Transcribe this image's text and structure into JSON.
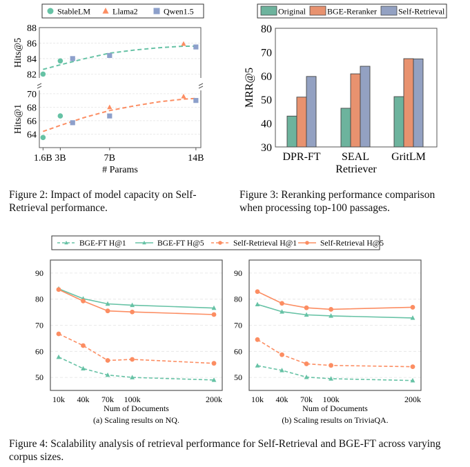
{
  "captions": {
    "fig2": "Figure 2: Impact of model capacity on Self-Retrieval performance.",
    "fig3": "Figure 3: Reranking performance comparison when processing top-100 passages.",
    "fig4": "Figure 4: Scalability analysis of retrieval performance for Self-Retrieval and BGE-FT across varying corpus sizes."
  },
  "colors": {
    "green": "#66c2a5",
    "orange": "#fc8d62",
    "blue": "#8da0cb",
    "bar_green": "#6db39d",
    "bar_orange": "#e8926f",
    "bar_blue": "#93a1c2"
  },
  "chart_data": [
    {
      "id": "fig2",
      "type": "scatter",
      "title": "",
      "xlabel": "# Params",
      "x_ticks": [
        1.6,
        3,
        7,
        14
      ],
      "x_tick_labels": [
        "1.6B",
        "3B",
        "7B",
        "14B"
      ],
      "xlim": [
        1.3,
        14.4
      ],
      "legend": [
        "StableLM",
        "Llama2",
        "Qwen1.5"
      ],
      "legend_position": "top",
      "panels": [
        {
          "ylabel": "Hits@5",
          "ylim": [
            81.5,
            88
          ],
          "yticks": [
            82,
            84,
            86,
            88
          ],
          "series": [
            {
              "name": "StableLM",
              "marker": "circle",
              "points": [
                [
                  1.6,
                  82.0
                ],
                [
                  3,
                  83.7
                ]
              ]
            },
            {
              "name": "Llama2",
              "marker": "triangle",
              "points": [
                [
                  13,
                  85.9
                ]
              ]
            },
            {
              "name": "Qwen1.5",
              "marker": "square",
              "points": [
                [
                  4,
                  84.0
                ],
                [
                  7,
                  84.4
                ],
                [
                  14,
                  85.5
                ]
              ]
            }
          ],
          "trend": {
            "color": "green",
            "points": [
              [
                1.6,
                82.6
              ],
              [
                3,
                83.2
              ],
              [
                4,
                83.6
              ],
              [
                5,
                84.0
              ],
              [
                7,
                84.7
              ],
              [
                9,
                85.1
              ],
              [
                11,
                85.4
              ],
              [
                13,
                85.6
              ],
              [
                14,
                85.6
              ]
            ]
          }
        },
        {
          "ylabel": "Hits@1",
          "ylim": [
            62,
            70.5
          ],
          "yticks": [
            64,
            66,
            68,
            70
          ],
          "series": [
            {
              "name": "StableLM",
              "marker": "circle",
              "points": [
                [
                  1.6,
                  63.5
                ],
                [
                  3,
                  66.7
                ]
              ]
            },
            {
              "name": "Llama2",
              "marker": "triangle",
              "points": [
                [
                  7,
                  68.0
                ],
                [
                  13,
                  69.6
                ]
              ]
            },
            {
              "name": "Qwen1.5",
              "marker": "square",
              "points": [
                [
                  4,
                  65.7
                ],
                [
                  7,
                  66.7
                ],
                [
                  14,
                  69.0
                ]
              ]
            }
          ],
          "trend": {
            "color": "orange",
            "points": [
              [
                1.6,
                64.4
              ],
              [
                3,
                65.3
              ],
              [
                4,
                65.9
              ],
              [
                5,
                66.5
              ],
              [
                7,
                67.5
              ],
              [
                9,
                68.2
              ],
              [
                11,
                68.8
              ],
              [
                13,
                69.2
              ],
              [
                14,
                69.3
              ]
            ]
          }
        }
      ]
    },
    {
      "id": "fig3",
      "type": "bar",
      "title": "",
      "xlabel": "Retriever",
      "ylabel": "MRR@5",
      "ylim": [
        30,
        80
      ],
      "yticks": [
        30,
        40,
        50,
        60,
        70,
        80
      ],
      "categories": [
        "DPR-FT",
        "SEAL",
        "GritLM"
      ],
      "series": [
        {
          "name": "Original",
          "color": "bar_green",
          "values": [
            43.0,
            46.3,
            51.2
          ]
        },
        {
          "name": "BGE-Reranker",
          "color": "bar_orange",
          "values": [
            51.0,
            60.8,
            67.2
          ]
        },
        {
          "name": "Self-Retrieval",
          "color": "bar_blue",
          "values": [
            59.7,
            64.0,
            67.1
          ]
        }
      ],
      "legend_position": "top"
    },
    {
      "id": "fig4",
      "type": "line",
      "legend": [
        {
          "name": "BGE-FT H@1",
          "color": "green",
          "dash": true,
          "marker": "triangle"
        },
        {
          "name": "BGE-FT H@5",
          "color": "green",
          "dash": false,
          "marker": "triangle"
        },
        {
          "name": "Self-Retrieval H@1",
          "color": "orange",
          "dash": true,
          "marker": "circle"
        },
        {
          "name": "Self-Retrieval H@5",
          "color": "orange",
          "dash": false,
          "marker": "circle"
        }
      ],
      "legend_position": "top",
      "x": [
        10,
        40,
        70,
        100,
        200
      ],
      "x_tick_labels": [
        "10k",
        "40k",
        "70k",
        "100k",
        "200k"
      ],
      "xlim": [
        0,
        210
      ],
      "panels": [
        {
          "subtitle": "(a) Scaling results on NQ.",
          "xlabel": "Num of Documents",
          "ylim": [
            45,
            95
          ],
          "yticks": [
            50,
            60,
            70,
            80,
            90
          ],
          "series": [
            {
              "name": "BGE-FT H@1",
              "values": [
                57.8,
                53.4,
                50.9,
                50.0,
                49.0
              ]
            },
            {
              "name": "BGE-FT H@5",
              "values": [
                84.0,
                80.2,
                78.2,
                77.7,
                76.6
              ]
            },
            {
              "name": "Self-Retrieval H@1",
              "values": [
                66.7,
                62.2,
                56.5,
                56.9,
                55.4
              ]
            },
            {
              "name": "Self-Retrieval H@5",
              "values": [
                83.7,
                79.3,
                75.5,
                75.1,
                74.1
              ]
            }
          ]
        },
        {
          "subtitle": "(b) Scaling results on TriviaQA.",
          "xlabel": "Num of Documents",
          "ylim": [
            45,
            95
          ],
          "yticks": [
            50,
            60,
            70,
            80,
            90
          ],
          "series": [
            {
              "name": "BGE-FT H@1",
              "values": [
                54.5,
                52.7,
                50.1,
                49.5,
                48.8
              ]
            },
            {
              "name": "BGE-FT H@5",
              "values": [
                78.0,
                75.2,
                74.0,
                73.6,
                72.8
              ]
            },
            {
              "name": "Self-Retrieval H@1",
              "values": [
                64.5,
                58.7,
                55.2,
                54.6,
                54.1
              ]
            },
            {
              "name": "Self-Retrieval H@5",
              "values": [
                82.9,
                78.4,
                76.7,
                76.1,
                76.9
              ]
            }
          ]
        }
      ]
    }
  ]
}
